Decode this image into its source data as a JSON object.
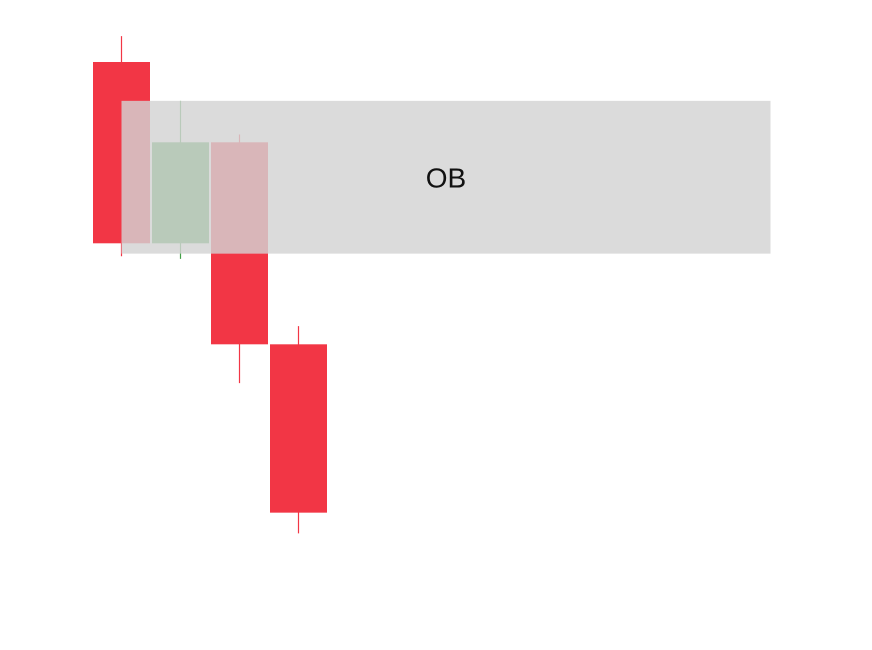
{
  "chart_data": {
    "type": "candlestick",
    "title": "",
    "xlabel": "",
    "ylabel": "",
    "grid": false,
    "ylim": [
      0,
      100
    ],
    "candles": [
      {
        "open": 87.0,
        "high": 92.0,
        "low": 49.5,
        "close": 52.0,
        "direction": "bearish"
      },
      {
        "open": 52.0,
        "high": 79.5,
        "low": 49.0,
        "close": 71.5,
        "direction": "bullish"
      },
      {
        "open": 71.5,
        "high": 73.0,
        "low": 25.0,
        "close": 32.5,
        "direction": "bearish"
      },
      {
        "open": 32.5,
        "high": 36.0,
        "low": -4.0,
        "close": 0.0,
        "direction": "bearish"
      }
    ],
    "zones": [
      {
        "label": "OB",
        "start_candle": 0,
        "end_candle": 11,
        "top": 79.5,
        "bottom": 50.0
      }
    ]
  },
  "colors": {
    "bullish": "#43A047",
    "bearish": "#F23645",
    "zone_fill": "#D3D3D3",
    "zone_text": "#111111"
  }
}
